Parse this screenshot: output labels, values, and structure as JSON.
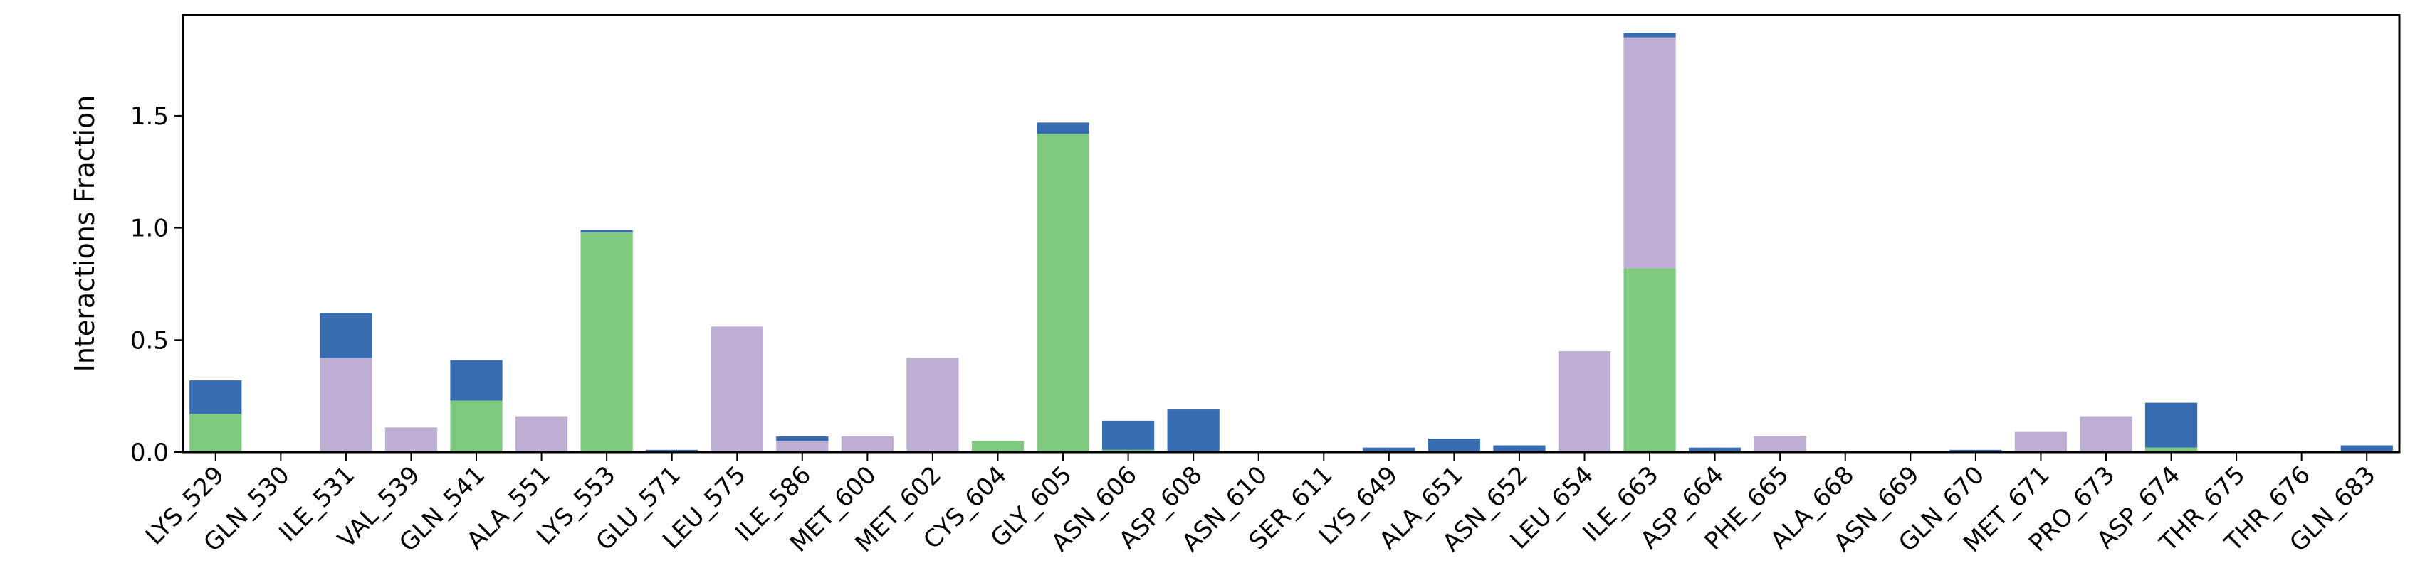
{
  "chart_data": {
    "type": "bar",
    "stacked": true,
    "ylabel": "Interactions Fraction",
    "xlabel": "",
    "ylim": [
      0,
      1.95
    ],
    "yticks": [
      0.0,
      0.5,
      1.0,
      1.5
    ],
    "ytick_labels": [
      "0.0",
      "0.5",
      "1.0",
      "1.5"
    ],
    "grid": false,
    "categories": [
      "LYS_529",
      "GLN_530",
      "ILE_531",
      "VAL_539",
      "GLN_541",
      "ALA_551",
      "LYS_553",
      "GLU_571",
      "LEU_575",
      "ILE_586",
      "MET_600",
      "MET_602",
      "CYS_604",
      "GLY_605",
      "ASN_606",
      "ASP_608",
      "ASN_610",
      "SER_611",
      "LYS_649",
      "ALA_651",
      "ASN_652",
      "LEU_654",
      "ILE_663",
      "ASP_664",
      "PHE_665",
      "ALA_668",
      "ASN_669",
      "GLN_670",
      "MET_671",
      "PRO_673",
      "ASP_674",
      "THR_675",
      "THR_676",
      "GLN_683"
    ],
    "series": [
      {
        "key": "green",
        "color": "#7fc97f",
        "values": [
          0.17,
          0,
          0,
          0,
          0.23,
          0,
          0.98,
          0,
          0,
          0,
          0,
          0,
          0.05,
          1.42,
          0.01,
          0,
          0,
          0,
          0,
          0,
          0,
          0,
          0.82,
          0,
          0,
          0,
          0,
          0,
          0,
          0,
          0.02,
          0,
          0,
          0
        ]
      },
      {
        "key": "purple",
        "color": "#beaed4",
        "values": [
          0,
          0,
          0.42,
          0.11,
          0,
          0.16,
          0,
          0,
          0.56,
          0.05,
          0.07,
          0.42,
          0,
          0,
          0,
          0,
          0,
          0,
          0,
          0,
          0,
          0.45,
          1.03,
          0,
          0.07,
          0,
          0,
          0,
          0.09,
          0.16,
          0,
          0,
          0,
          0
        ]
      },
      {
        "key": "blue",
        "color": "#386cb0",
        "values": [
          0.15,
          0,
          0.2,
          0,
          0.18,
          0,
          0.01,
          0.01,
          0,
          0.02,
          0,
          0,
          0,
          0.05,
          0.13,
          0.19,
          0,
          0,
          0.02,
          0.06,
          0.03,
          0,
          0.02,
          0.02,
          0,
          0,
          0,
          0.01,
          0,
          0,
          0.2,
          0,
          0,
          0.03
        ]
      }
    ]
  }
}
